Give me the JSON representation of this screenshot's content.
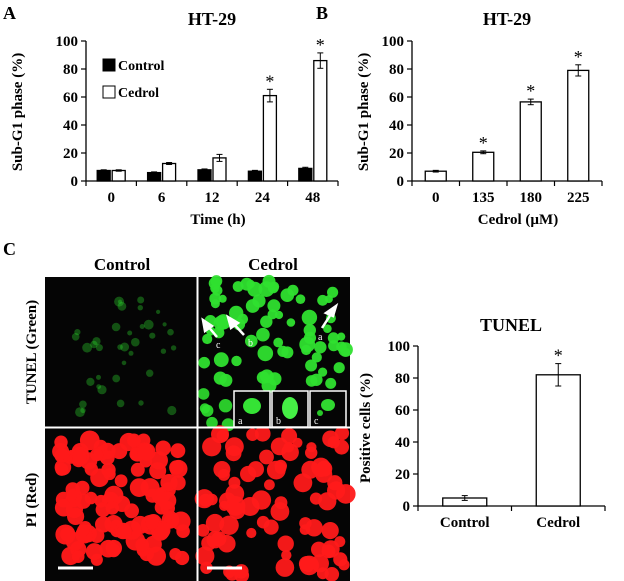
{
  "figure": {
    "panel_labels": {
      "a": "A",
      "b": "B",
      "c": "C"
    },
    "colors": {
      "control_bar": "#000000",
      "cedrol_bar": "#ffffff",
      "tunel_green": "#2fe02f",
      "pi_red": "#ff1a1a",
      "micro_bg": "#050505"
    }
  },
  "chart_data": [
    {
      "type": "bar",
      "title": "HT-29",
      "categories": [
        "0",
        "6",
        "12",
        "24",
        "48"
      ],
      "series": [
        {
          "name": "Control",
          "values": [
            7.5,
            6,
            8,
            7,
            9
          ],
          "errors": [
            0.5,
            0.5,
            0.6,
            0.6,
            0.8
          ]
        },
        {
          "name": "Cedrol",
          "values": [
            7.5,
            12.5,
            16.5,
            61,
            86
          ],
          "errors": [
            0.5,
            0.7,
            2.5,
            4.5,
            5.5
          ]
        }
      ],
      "significant": [
        false,
        false,
        false,
        true,
        true
      ],
      "xlabel": "Time (h)",
      "ylabel": "Sub-G1 phase (%)",
      "ylim": [
        0,
        100
      ],
      "yticks": [
        "0",
        "20",
        "40",
        "60",
        "80",
        "100"
      ],
      "legend": [
        "Control",
        "Cedrol"
      ],
      "significance_mark": "*"
    },
    {
      "type": "bar",
      "title": "HT-29",
      "categories": [
        "0",
        "135",
        "180",
        "225"
      ],
      "series": [
        {
          "name": "Cedrol",
          "values": [
            7,
            20.5,
            56.5,
            79
          ],
          "errors": [
            0.6,
            1.0,
            2.0,
            4.0
          ]
        }
      ],
      "significant": [
        false,
        true,
        true,
        true
      ],
      "xlabel": "Cedrol (µM)",
      "ylabel": "Sub-G1 phase (%)",
      "ylim": [
        0,
        100
      ],
      "yticks": [
        "0",
        "20",
        "40",
        "60",
        "80",
        "100"
      ],
      "significance_mark": "*"
    },
    {
      "type": "bar",
      "title": "TUNEL",
      "categories": [
        "Control",
        "Cedrol"
      ],
      "series": [
        {
          "name": "Positive cells",
          "values": [
            5,
            82
          ],
          "errors": [
            1.5,
            7
          ]
        }
      ],
      "significant": [
        false,
        true
      ],
      "xlabel": "",
      "ylabel": "Positive cells (%)",
      "ylim": [
        0,
        100
      ],
      "yticks": [
        "0",
        "20",
        "40",
        "60",
        "80",
        "100"
      ],
      "significance_mark": "*"
    }
  ],
  "micrographs": {
    "column_headers": [
      "Control",
      "Cedrol"
    ],
    "row_labels": [
      "TUNEL (Green)",
      "PI (Red)"
    ],
    "arrow_labels": [
      "a",
      "b",
      "c"
    ],
    "inset_labels": [
      "a",
      "b",
      "c"
    ]
  }
}
